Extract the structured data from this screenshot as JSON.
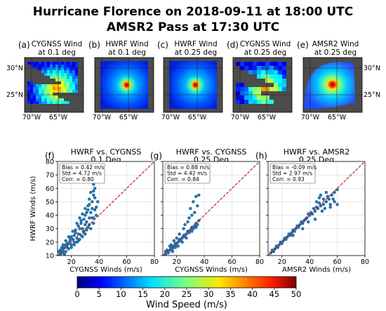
{
  "figure": {
    "title_line1": "Hurricane Florence on 2018-09-11 at 18:00 UTC",
    "title_line2": "AMSR2 Pass at 17:30 UTC"
  },
  "maps": [
    {
      "panel": "(a)",
      "title1": "CYGNSS Wind",
      "title2": "at 0.1 deg",
      "source": "cygnss"
    },
    {
      "panel": "(b)",
      "title1": "HWRF Wind",
      "title2": "at 0.1 deg",
      "source": "hwrf"
    },
    {
      "panel": "(c)",
      "title1": "HWRF Wind",
      "title2": "at 0.25 deg",
      "source": "hwrf"
    },
    {
      "panel": "(d)",
      "title1": "CYGNSS Wind",
      "title2": "at 0.25 deg",
      "source": "cygnss"
    },
    {
      "panel": "(e)",
      "title1": "AMSR2 Wind",
      "title2": "at 0.25 deg",
      "source": "amsr2"
    }
  ],
  "map_axes": {
    "lat_ticks": [
      "30°N",
      "25°N"
    ],
    "lon_ticks": [
      "70°W",
      "65°W"
    ]
  },
  "colorbar": {
    "label": "Wind Speed (m/s)",
    "min": 0,
    "max": 50,
    "ticks": [
      "0",
      "5",
      "10",
      "15",
      "20",
      "25",
      "30",
      "35",
      "40",
      "45",
      "50"
    ],
    "colormap": "jet"
  },
  "chart_data": [
    {
      "type": "scatter",
      "panel": "(f)",
      "title": "HWRF vs. CYGNSS",
      "subtitle": "0.1 Deg",
      "xlabel": "CYGNSS Winds (m/s)",
      "ylabel": "HWRF Winds (m/s)",
      "xlim": [
        10,
        80
      ],
      "ylim": [
        10,
        80
      ],
      "xticks": [
        "20",
        "40",
        "60",
        "80"
      ],
      "yticks": [
        "10",
        "20",
        "30",
        "40",
        "50",
        "60",
        "70",
        "80"
      ],
      "stats": [
        "Bias = 0.42 m/s",
        "Std = 4.72 m/s",
        "Corr. = 0.80"
      ],
      "grid": true,
      "one_to_one_line": true,
      "points": [
        [
          12,
          11
        ],
        [
          14,
          13
        ],
        [
          15,
          16
        ],
        [
          17,
          16
        ],
        [
          18,
          19
        ],
        [
          20,
          18
        ],
        [
          21,
          22
        ],
        [
          22,
          20
        ],
        [
          24,
          23
        ],
        [
          25,
          26
        ],
        [
          27,
          25
        ],
        [
          28,
          30
        ],
        [
          29,
          28
        ],
        [
          30,
          33
        ],
        [
          31,
          35
        ],
        [
          32,
          31
        ],
        [
          33,
          38
        ],
        [
          34,
          42
        ],
        [
          35,
          45
        ],
        [
          35,
          50
        ],
        [
          36,
          55
        ],
        [
          37,
          60
        ],
        [
          36,
          63
        ],
        [
          34,
          57
        ],
        [
          33,
          48
        ],
        [
          32,
          44
        ],
        [
          30,
          40
        ],
        [
          29,
          37
        ],
        [
          27,
          34
        ],
        [
          26,
          30
        ],
        [
          25,
          32
        ],
        [
          23,
          27
        ],
        [
          22,
          25
        ],
        [
          20,
          24
        ],
        [
          19,
          21
        ],
        [
          17,
          19
        ],
        [
          16,
          18
        ],
        [
          14,
          15
        ],
        [
          13,
          12
        ],
        [
          12,
          14
        ],
        [
          18,
          15
        ],
        [
          22,
          18
        ],
        [
          26,
          22
        ],
        [
          30,
          26
        ],
        [
          34,
          30
        ],
        [
          36,
          34
        ],
        [
          38,
          40
        ],
        [
          37,
          44
        ],
        [
          39,
          50
        ],
        [
          35,
          38
        ],
        [
          31,
          29
        ],
        [
          28,
          24
        ],
        [
          24,
          20
        ],
        [
          20,
          16
        ],
        [
          16,
          13
        ],
        [
          15,
          11
        ],
        [
          19,
          23
        ],
        [
          23,
          29
        ],
        [
          27,
          36
        ],
        [
          31,
          42
        ],
        [
          33,
          52
        ],
        [
          32,
          47
        ],
        [
          30,
          45
        ],
        [
          28,
          41
        ],
        [
          26,
          38
        ],
        [
          24,
          34
        ],
        [
          21,
          28
        ],
        [
          18,
          24
        ],
        [
          16,
          21
        ],
        [
          14,
          18
        ],
        [
          13,
          16
        ],
        [
          12,
          12
        ],
        [
          11,
          13
        ],
        [
          25,
          21
        ],
        [
          29,
          27
        ],
        [
          33,
          33
        ],
        [
          36,
          38
        ],
        [
          38,
          46
        ],
        [
          37,
          53
        ],
        [
          36,
          58
        ]
      ]
    },
    {
      "type": "scatter",
      "panel": "(g)",
      "title": "HWRF vs. CYGNSS",
      "subtitle": "0.25 Deg",
      "xlabel": "CYGNSS Winds (m/s)",
      "ylabel": "",
      "xlim": [
        10,
        80
      ],
      "ylim": [
        10,
        80
      ],
      "xticks": [
        "20",
        "40",
        "60",
        "80"
      ],
      "stats": [
        "Bias = 0.88 m/s",
        "Std = 4.42 m/s",
        "Corr. = 0.84"
      ],
      "grid": true,
      "one_to_one_line": true,
      "points": [
        [
          12,
          11
        ],
        [
          13,
          13
        ],
        [
          15,
          14
        ],
        [
          16,
          16
        ],
        [
          18,
          17
        ],
        [
          19,
          19
        ],
        [
          21,
          20
        ],
        [
          22,
          22
        ],
        [
          24,
          23
        ],
        [
          25,
          25
        ],
        [
          27,
          26
        ],
        [
          28,
          28
        ],
        [
          30,
          29
        ],
        [
          31,
          31
        ],
        [
          33,
          32
        ],
        [
          34,
          34
        ],
        [
          36,
          36
        ],
        [
          14,
          12
        ],
        [
          17,
          15
        ],
        [
          20,
          18
        ],
        [
          23,
          21
        ],
        [
          26,
          24
        ],
        [
          29,
          27
        ],
        [
          32,
          30
        ],
        [
          35,
          33
        ],
        [
          30,
          45
        ],
        [
          32,
          50
        ],
        [
          34,
          54
        ],
        [
          36,
          55
        ],
        [
          33,
          42
        ],
        [
          28,
          35
        ],
        [
          25,
          30
        ],
        [
          22,
          26
        ],
        [
          20,
          23
        ],
        [
          18,
          21
        ],
        [
          16,
          18
        ],
        [
          15,
          17
        ],
        [
          13,
          14
        ],
        [
          12,
          13
        ],
        [
          21,
          17
        ],
        [
          24,
          20
        ],
        [
          27,
          23
        ],
        [
          31,
          28
        ],
        [
          34,
          31
        ],
        [
          26,
          33
        ],
        [
          29,
          38
        ],
        [
          31,
          40
        ],
        [
          35,
          47
        ],
        [
          19,
          16
        ],
        [
          17,
          13
        ]
      ]
    },
    {
      "type": "scatter",
      "panel": "(h)",
      "title": "HWRF vs. AMSR2",
      "subtitle": "0.25 Deg",
      "xlabel": "AMSR2 Winds (m/s)",
      "ylabel": "",
      "xlim": [
        10,
        80
      ],
      "ylim": [
        10,
        80
      ],
      "xticks": [
        "20",
        "40",
        "60",
        "80"
      ],
      "stats": [
        "Bias = -0.09 m/s",
        "Std = 2.97 m/s",
        "Corr. = 0.93"
      ],
      "grid": true,
      "one_to_one_line": true,
      "points": [
        [
          12,
          12
        ],
        [
          13,
          14
        ],
        [
          15,
          15
        ],
        [
          16,
          17
        ],
        [
          18,
          18
        ],
        [
          19,
          20
        ],
        [
          21,
          21
        ],
        [
          22,
          23
        ],
        [
          24,
          24
        ],
        [
          25,
          26
        ],
        [
          27,
          27
        ],
        [
          28,
          29
        ],
        [
          30,
          30
        ],
        [
          31,
          32
        ],
        [
          33,
          33
        ],
        [
          34,
          35
        ],
        [
          36,
          36
        ],
        [
          38,
          38
        ],
        [
          40,
          40
        ],
        [
          42,
          41
        ],
        [
          44,
          43
        ],
        [
          46,
          45
        ],
        [
          48,
          47
        ],
        [
          50,
          48
        ],
        [
          52,
          50
        ],
        [
          54,
          52
        ],
        [
          56,
          55
        ],
        [
          58,
          57
        ],
        [
          60,
          59
        ],
        [
          57,
          52
        ],
        [
          55,
          48
        ],
        [
          53,
          54
        ],
        [
          50,
          52
        ],
        [
          47,
          49
        ],
        [
          45,
          46
        ],
        [
          43,
          45
        ],
        [
          41,
          42
        ],
        [
          39,
          41
        ],
        [
          37,
          37
        ],
        [
          35,
          34
        ],
        [
          32,
          31
        ],
        [
          29,
          28
        ],
        [
          26,
          25
        ],
        [
          23,
          22
        ],
        [
          20,
          19
        ],
        [
          17,
          16
        ],
        [
          14,
          13
        ],
        [
          44,
          37
        ],
        [
          49,
          43
        ],
        [
          51,
          45
        ],
        [
          39,
          35
        ],
        [
          35,
          30
        ],
        [
          28,
          25
        ],
        [
          45,
          50
        ],
        [
          47,
          53
        ],
        [
          55,
          46
        ],
        [
          58,
          50
        ],
        [
          60,
          48
        ],
        [
          52,
          57
        ],
        [
          48,
          55
        ]
      ]
    }
  ]
}
